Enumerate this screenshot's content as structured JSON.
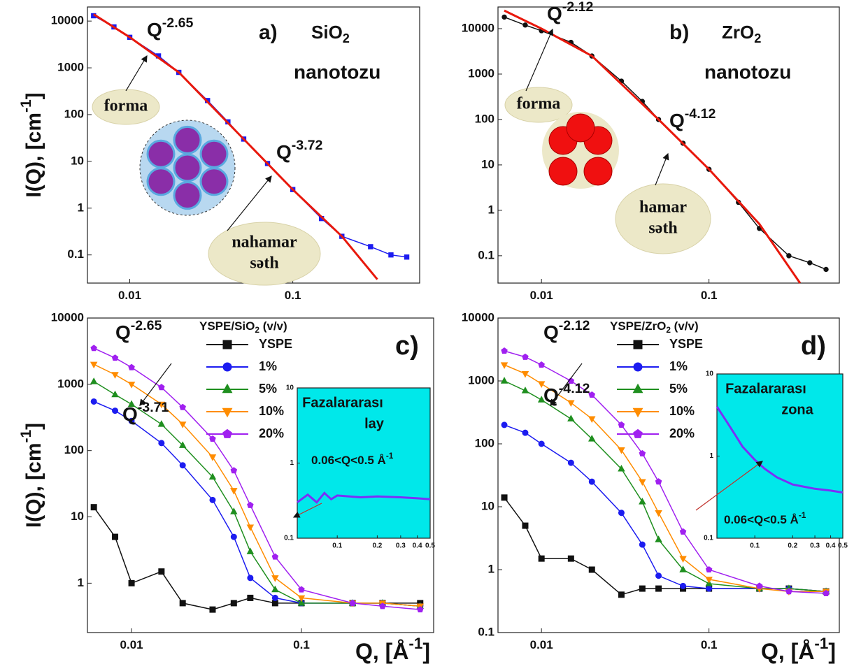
{
  "chart_data": [
    {
      "type": "line",
      "panel_label": "a)",
      "title": {
        "text": "SiO",
        "sub": "2"
      },
      "subtitle": "nanotozu",
      "y_label": {
        "text": "I(Q), [cm",
        "sup": "-1",
        "after": "]"
      },
      "xlim": [
        0.0055,
        0.6
      ],
      "ylim": [
        0.025,
        20000
      ],
      "log_x": true,
      "log_y": true,
      "xticks": [
        0.01,
        0.1
      ],
      "yticks": [
        0.1,
        1,
        10,
        100,
        1000,
        10000
      ],
      "x": [
        0.006,
        0.008,
        0.01,
        0.015,
        0.02,
        0.03,
        0.04,
        0.05,
        0.07,
        0.1,
        0.15,
        0.2,
        0.3,
        0.4,
        0.5
      ],
      "series": [
        {
          "color": "#1c1cf0",
          "marker": "square",
          "values": [
            13000,
            7500,
            4500,
            1800,
            800,
            200,
            70,
            30,
            9,
            2.5,
            0.6,
            0.25,
            0.15,
            0.1,
            0.09
          ]
        },
        {
          "color": "#e8180c",
          "x": [
            0.006,
            0.01,
            0.02,
            0.05,
            0.1,
            0.2,
            0.33
          ],
          "values": [
            14000,
            4500,
            800,
            30,
            2.5,
            0.25,
            0.03
          ]
        }
      ],
      "annotations": [
        {
          "text": "Q",
          "sup": "-2.65"
        },
        {
          "text": "Q",
          "sup": "-3.72"
        }
      ],
      "notes": [
        {
          "lines": [
            "forma"
          ]
        },
        {
          "lines": [
            "nahamar",
            "səth"
          ]
        }
      ]
    },
    {
      "type": "line",
      "panel_label": "b)",
      "title": {
        "text": "ZrO",
        "sub": "2"
      },
      "subtitle": "nanotozu",
      "xlim": [
        0.0055,
        0.6
      ],
      "ylim": [
        0.025,
        30000
      ],
      "log_x": true,
      "log_y": true,
      "xticks": [
        0.01,
        0.1
      ],
      "yticks": [
        0.1,
        1,
        10,
        100,
        1000,
        10000
      ],
      "x": [
        0.006,
        0.008,
        0.01,
        0.015,
        0.02,
        0.03,
        0.04,
        0.05,
        0.07,
        0.1,
        0.15,
        0.2,
        0.3,
        0.4,
        0.5
      ],
      "series": [
        {
          "color": "#111111",
          "marker": "circle",
          "values": [
            18000,
            12000,
            9000,
            5000,
            2500,
            700,
            250,
            100,
            30,
            8,
            1.5,
            0.4,
            0.1,
            0.07,
            0.05
          ]
        },
        {
          "color": "#e8180c",
          "x": [
            0.006,
            0.01,
            0.02,
            0.05,
            0.1,
            0.2,
            0.35
          ],
          "values": [
            25000,
            10000,
            2500,
            100,
            8,
            0.5,
            0.025
          ]
        }
      ],
      "annotations": [
        {
          "text": "Q",
          "sup": "-2.12"
        },
        {
          "text": "Q",
          "sup": "-4.12"
        }
      ],
      "notes": [
        {
          "lines": [
            "forma"
          ]
        },
        {
          "lines": [
            "hamar",
            "səth"
          ]
        }
      ]
    },
    {
      "type": "line",
      "panel_label": "c)",
      "y_label": {
        "text": "I(Q), [cm",
        "sup": "-1",
        "after": "]"
      },
      "x_label": {
        "text": "Q, [Å",
        "sup": "-1",
        "after": "]"
      },
      "legend_title": {
        "text": "YSPE/SiO",
        "sub": "2",
        "after": " (v/v)"
      },
      "xlim": [
        0.0055,
        0.6
      ],
      "ylim": [
        0.18,
        10000
      ],
      "log_x": true,
      "log_y": true,
      "xticks": [
        0.01,
        0.1
      ],
      "yticks": [
        1,
        10,
        100,
        1000,
        10000
      ],
      "x": [
        0.006,
        0.008,
        0.01,
        0.015,
        0.02,
        0.03,
        0.04,
        0.05,
        0.07,
        0.1,
        0.2,
        0.3,
        0.5
      ],
      "series": [
        {
          "name": "YSPE",
          "color": "#111111",
          "marker": "square",
          "values": [
            14,
            5,
            1,
            1.5,
            0.5,
            0.4,
            0.5,
            0.6,
            0.5,
            0.5,
            0.5,
            0.5,
            0.5
          ]
        },
        {
          "name": "1%",
          "color": "#1c1cf0",
          "marker": "circle",
          "values": [
            550,
            400,
            280,
            130,
            60,
            18,
            5,
            1.2,
            0.6,
            0.5,
            0.5,
            0.5,
            0.45
          ]
        },
        {
          "name": "5%",
          "color": "#1f8f1f",
          "marker": "triangle-up",
          "values": [
            1100,
            700,
            500,
            250,
            120,
            40,
            12,
            3,
            0.8,
            0.5,
            0.5,
            0.5,
            0.45
          ]
        },
        {
          "name": "10%",
          "color": "#ff8c00",
          "marker": "triangle-down",
          "values": [
            2000,
            1400,
            1000,
            500,
            250,
            80,
            25,
            7,
            1.2,
            0.6,
            0.5,
            0.5,
            0.45
          ]
        },
        {
          "name": "20%",
          "color": "#a020f0",
          "marker": "pentagon",
          "values": [
            3500,
            2500,
            1800,
            900,
            450,
            150,
            50,
            15,
            2.5,
            0.8,
            0.5,
            0.45,
            0.4
          ]
        }
      ],
      "annotations": [
        {
          "text": "Q",
          "sup": "-2.65"
        },
        {
          "text": "Q",
          "sup": "-3.71"
        }
      ],
      "inset": {
        "xlim": [
          0.05,
          0.5
        ],
        "ylim": [
          0.1,
          10
        ],
        "xticks": [
          0.1,
          0.2,
          0.3,
          0.4,
          0.5
        ],
        "yticks": [
          0.1,
          1,
          10
        ],
        "x": [
          0.05,
          0.06,
          0.07,
          0.08,
          0.09,
          0.1,
          0.15,
          0.2,
          0.3,
          0.4,
          0.5
        ],
        "series": [
          {
            "color": "#7b2ff7",
            "values": [
              0.3,
              0.38,
              0.3,
              0.4,
              0.33,
              0.37,
              0.35,
              0.36,
              0.35,
              0.34,
              0.33
            ]
          }
        ],
        "title": [
          "Fazalararası",
          "lay"
        ],
        "range_label": {
          "text": "0.06<Q<0.5 Å",
          "sup": "-1"
        }
      }
    },
    {
      "type": "line",
      "panel_label": "d)",
      "x_label": {
        "text": "Q, [Å",
        "sup": "-1",
        "after": "]"
      },
      "legend_title": {
        "text": "YSPE/ZrO",
        "sub": "2",
        "after": " (v/v)"
      },
      "xlim": [
        0.0055,
        0.6
      ],
      "ylim": [
        0.1,
        10000
      ],
      "log_x": true,
      "log_y": true,
      "xticks": [
        0.01,
        0.1
      ],
      "yticks": [
        0.1,
        1,
        10,
        100,
        1000,
        10000
      ],
      "x": [
        0.006,
        0.008,
        0.01,
        0.015,
        0.02,
        0.03,
        0.04,
        0.05,
        0.07,
        0.1,
        0.2,
        0.3,
        0.5
      ],
      "series": [
        {
          "name": "YSPE",
          "color": "#111111",
          "marker": "square",
          "values": [
            14,
            5,
            1.5,
            1.5,
            1,
            0.4,
            0.5,
            0.5,
            0.5,
            0.5,
            0.5,
            0.5,
            0.45
          ]
        },
        {
          "name": "1%",
          "color": "#1c1cf0",
          "marker": "circle",
          "values": [
            200,
            150,
            100,
            50,
            25,
            8,
            2.5,
            0.8,
            0.55,
            0.5,
            0.5,
            0.5,
            0.45
          ]
        },
        {
          "name": "5%",
          "color": "#1f8f1f",
          "marker": "triangle-up",
          "values": [
            1000,
            700,
            500,
            250,
            120,
            40,
            12,
            3,
            1,
            0.6,
            0.5,
            0.5,
            0.45
          ]
        },
        {
          "name": "10%",
          "color": "#ff8c00",
          "marker": "triangle-down",
          "values": [
            1800,
            1300,
            900,
            450,
            250,
            80,
            25,
            8,
            1.5,
            0.7,
            0.5,
            0.45,
            0.45
          ]
        },
        {
          "name": "20%",
          "color": "#a020f0",
          "marker": "pentagon",
          "values": [
            3000,
            2400,
            1800,
            1000,
            600,
            200,
            70,
            25,
            4,
            1,
            0.55,
            0.45,
            0.42
          ]
        }
      ],
      "annotations": [
        {
          "text": "Q",
          "sup": "-2.12"
        },
        {
          "text": "Q",
          "sup": "-4.12"
        }
      ],
      "inset": {
        "xlim": [
          0.05,
          0.5
        ],
        "ylim": [
          0.1,
          10
        ],
        "xticks": [
          0.1,
          0.2,
          0.3,
          0.4,
          0.5
        ],
        "yticks": [
          0.1,
          1,
          10
        ],
        "x": [
          0.05,
          0.06,
          0.07,
          0.08,
          0.1,
          0.12,
          0.15,
          0.2,
          0.3,
          0.4,
          0.5
        ],
        "series": [
          {
            "color": "#7b2ff7",
            "values": [
              4,
              2.6,
              1.8,
              1.3,
              0.9,
              0.7,
              0.55,
              0.45,
              0.4,
              0.38,
              0.36
            ]
          }
        ],
        "title": [
          "Fazalararası",
          "zona"
        ],
        "range_label": {
          "text": "0.06<Q<0.5 Å",
          "sup": "-1"
        }
      }
    }
  ]
}
